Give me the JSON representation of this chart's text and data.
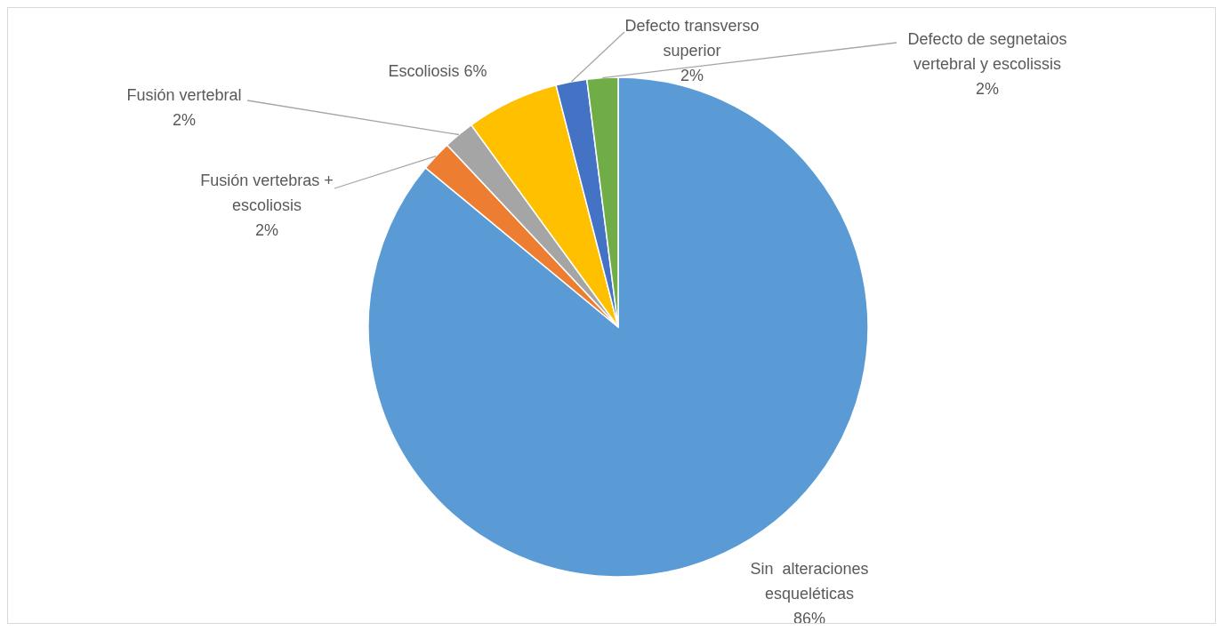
{
  "chart_data": {
    "type": "pie",
    "categories": [
      "Sin  alteraciones esqueléticas",
      "Fusión vertebras + escoliosis",
      "Fusión vertebral",
      "Escoliosis",
      "Defecto transverso superior",
      "Defecto de segnetaios vertebral y escolissis"
    ],
    "values": [
      86,
      2,
      2,
      6,
      2,
      2
    ],
    "value_labels": [
      "86%",
      "2%",
      "2%",
      "6%",
      "2%",
      "2%"
    ],
    "colors": [
      "#5b9bd5",
      "#ed7d31",
      "#a5a5a5",
      "#ffc000",
      "#4472c4",
      "#70ad47"
    ],
    "legend": false
  }
}
